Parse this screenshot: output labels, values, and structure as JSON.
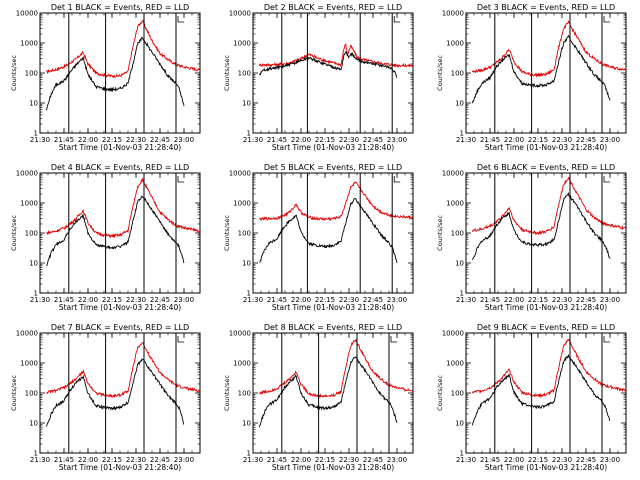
{
  "chart_data": {
    "type": "line",
    "y_scale": "log",
    "y_range": [
      1,
      10000
    ],
    "x_range": [
      "21:30",
      "23:10"
    ],
    "x_ticks": [
      "21:30",
      "21:45",
      "22:00",
      "22:15",
      "22:30",
      "22:45",
      "23:00"
    ],
    "y_ticks": [
      "1",
      "10",
      "100",
      "1000",
      "10000"
    ],
    "ylabel": "Counts/sec",
    "xlabel": "Start Time (01-Nov-03 21:28:40)",
    "series_colors": {
      "events": "#000000",
      "lld": "#e00000"
    },
    "panels": [
      {
        "title": "Det 1  BLACK = Events, RED = LLD",
        "markers": [
          "21:48",
          "22:11",
          "22:35",
          "22:55"
        ],
        "lld": {
          "x": [
            "21:34",
            "21:40",
            "21:46",
            "21:52",
            "21:57",
            "22:00",
            "22:05",
            "22:10",
            "22:15",
            "22:20",
            "22:25",
            "22:27",
            "22:31",
            "22:34",
            "22:40",
            "22:45",
            "22:50",
            "22:55",
            "23:00",
            "23:05",
            "23:10"
          ],
          "y": [
            110,
            130,
            170,
            280,
            480,
            200,
            100,
            85,
            80,
            80,
            110,
            400,
            3500,
            5500,
            1200,
            450,
            280,
            190,
            160,
            140,
            125
          ]
        },
        "events": {
          "x": [
            "21:34",
            "21:37",
            "21:40",
            "21:45",
            "21:49",
            "21:53",
            "21:57",
            "22:00",
            "22:05",
            "22:10",
            "22:15",
            "22:20",
            "22:25",
            "22:27",
            "22:31",
            "22:34",
            "22:40",
            "22:45",
            "22:50",
            "22:55",
            "22:57",
            "23:00"
          ],
          "y": [
            6,
            20,
            40,
            55,
            110,
            200,
            320,
            90,
            35,
            30,
            28,
            30,
            45,
            120,
            900,
            1500,
            500,
            200,
            80,
            45,
            30,
            8
          ]
        }
      },
      {
        "title": "Det 2  BLACK = Events, RED = LLD",
        "markers": [
          "21:48",
          "22:04",
          "22:37",
          "22:57"
        ],
        "lld": {
          "x": [
            "21:34",
            "21:45",
            "21:52",
            "22:00",
            "22:05",
            "22:10",
            "22:15",
            "22:20",
            "22:25",
            "22:27",
            "22:28",
            "22:29",
            "22:31",
            "22:33",
            "22:35",
            "22:40",
            "22:50",
            "23:00",
            "23:10"
          ],
          "y": [
            185,
            190,
            210,
            300,
            420,
            320,
            260,
            220,
            190,
            700,
            950,
            400,
            800,
            550,
            330,
            270,
            210,
            180,
            175
          ]
        },
        "events": {
          "x": [
            "21:34",
            "21:37",
            "21:45",
            "21:52",
            "22:00",
            "22:05",
            "22:10",
            "22:15",
            "22:20",
            "22:25",
            "22:27",
            "22:28",
            "22:30",
            "22:32",
            "22:34",
            "22:40",
            "22:50",
            "22:55",
            "22:58",
            "23:00"
          ],
          "y": [
            90,
            130,
            150,
            180,
            260,
            320,
            250,
            200,
            160,
            130,
            420,
            500,
            330,
            450,
            290,
            230,
            180,
            160,
            120,
            70
          ]
        }
      },
      {
        "title": "Det 3  BLACK = Events, RED = LLD",
        "markers": [
          "21:48",
          "22:11",
          "22:35",
          "22:55"
        ],
        "lld": {
          "x": [
            "21:34",
            "21:40",
            "21:46",
            "21:52",
            "21:57",
            "22:00",
            "22:05",
            "22:10",
            "22:15",
            "22:20",
            "22:25",
            "22:27",
            "22:31",
            "22:34",
            "22:40",
            "22:45",
            "22:50",
            "22:55",
            "23:00",
            "23:05",
            "23:10"
          ],
          "y": [
            110,
            125,
            165,
            300,
            600,
            240,
            110,
            90,
            85,
            90,
            130,
            450,
            3000,
            4800,
            1400,
            500,
            300,
            200,
            160,
            140,
            130
          ]
        },
        "events": {
          "x": [
            "21:34",
            "21:37",
            "21:40",
            "21:45",
            "21:49",
            "21:53",
            "21:57",
            "22:00",
            "22:05",
            "22:10",
            "22:15",
            "22:20",
            "22:25",
            "22:27",
            "22:31",
            "22:34",
            "22:40",
            "22:45",
            "22:50",
            "22:55",
            "22:57",
            "23:00"
          ],
          "y": [
            10,
            25,
            45,
            70,
            160,
            280,
            400,
            110,
            45,
            40,
            38,
            40,
            55,
            150,
            1000,
            1600,
            550,
            220,
            90,
            50,
            35,
            12
          ]
        }
      },
      {
        "title": "Det 4  BLACK = Events, RED = LLD",
        "markers": [
          "21:48",
          "22:11",
          "22:35",
          "22:55"
        ],
        "lld": {
          "x": [
            "21:34",
            "21:40",
            "21:46",
            "21:52",
            "21:57",
            "22:00",
            "22:05",
            "22:10",
            "22:15",
            "22:20",
            "22:25",
            "22:27",
            "22:31",
            "22:34",
            "22:40",
            "22:45",
            "22:50",
            "22:55",
            "23:00",
            "23:05",
            "23:10"
          ],
          "y": [
            100,
            115,
            155,
            280,
            560,
            220,
            100,
            85,
            80,
            85,
            120,
            420,
            3500,
            6000,
            1500,
            500,
            280,
            180,
            150,
            130,
            115
          ]
        },
        "events": {
          "x": [
            "21:34",
            "21:37",
            "21:40",
            "21:45",
            "21:49",
            "21:53",
            "21:57",
            "22:00",
            "22:05",
            "22:10",
            "22:15",
            "22:20",
            "22:25",
            "22:27",
            "22:31",
            "22:34",
            "22:40",
            "22:45",
            "22:50",
            "22:55",
            "22:57",
            "23:00"
          ],
          "y": [
            8,
            22,
            40,
            60,
            140,
            250,
            380,
            100,
            40,
            35,
            32,
            35,
            50,
            140,
            1100,
            1700,
            600,
            230,
            90,
            50,
            35,
            10
          ]
        }
      },
      {
        "title": "Det 5  BLACK = Events, RED = LLD",
        "markers": [
          "21:48",
          "22:04",
          "22:37",
          "22:57"
        ],
        "lld": {
          "x": [
            "21:34",
            "21:40",
            "21:46",
            "21:52",
            "21:57",
            "22:00",
            "22:05",
            "22:10",
            "22:15",
            "22:20",
            "22:25",
            "22:27",
            "22:31",
            "22:34",
            "22:40",
            "22:45",
            "22:50",
            "22:55",
            "23:00",
            "23:05",
            "23:10"
          ],
          "y": [
            290,
            300,
            320,
            450,
            900,
            480,
            330,
            300,
            290,
            300,
            350,
            700,
            3200,
            4800,
            1800,
            800,
            500,
            400,
            360,
            340,
            320
          ]
        },
        "events": {
          "x": [
            "21:34",
            "21:37",
            "21:40",
            "21:45",
            "21:49",
            "21:53",
            "21:57",
            "22:00",
            "22:05",
            "22:10",
            "22:15",
            "22:20",
            "22:25",
            "22:27",
            "22:31",
            "22:34",
            "22:40",
            "22:45",
            "22:50",
            "22:55",
            "22:57",
            "23:00"
          ],
          "y": [
            10,
            25,
            45,
            65,
            150,
            260,
            380,
            105,
            45,
            38,
            35,
            38,
            52,
            140,
            900,
            1400,
            500,
            210,
            85,
            48,
            33,
            10
          ]
        }
      },
      {
        "title": "Det 6  BLACK = Events, RED = LLD",
        "markers": [
          "21:48",
          "22:11",
          "22:35",
          "22:55"
        ],
        "lld": {
          "x": [
            "21:34",
            "21:40",
            "21:46",
            "21:52",
            "21:57",
            "22:00",
            "22:05",
            "22:10",
            "22:15",
            "22:20",
            "22:25",
            "22:27",
            "22:31",
            "22:34",
            "22:40",
            "22:45",
            "22:50",
            "22:55",
            "23:00",
            "23:05",
            "23:10"
          ],
          "y": [
            120,
            135,
            180,
            320,
            700,
            260,
            130,
            110,
            100,
            110,
            160,
            550,
            4200,
            7000,
            1800,
            600,
            330,
            220,
            180,
            160,
            140
          ]
        },
        "events": {
          "x": [
            "21:34",
            "21:37",
            "21:40",
            "21:45",
            "21:49",
            "21:53",
            "21:57",
            "22:00",
            "22:05",
            "22:10",
            "22:15",
            "22:20",
            "22:25",
            "22:27",
            "22:31",
            "22:34",
            "22:40",
            "22:45",
            "22:50",
            "22:55",
            "22:57",
            "23:00"
          ],
          "y": [
            12,
            30,
            55,
            80,
            180,
            320,
            450,
            120,
            50,
            42,
            40,
            42,
            60,
            160,
            1300,
            2000,
            700,
            250,
            100,
            55,
            38,
            14
          ]
        }
      },
      {
        "title": "Det 7  BLACK = Events, RED = LLD",
        "markers": [
          "21:48",
          "22:11",
          "22:35",
          "22:55"
        ],
        "lld": {
          "x": [
            "21:34",
            "21:40",
            "21:46",
            "21:52",
            "21:57",
            "22:00",
            "22:05",
            "22:10",
            "22:15",
            "22:20",
            "22:25",
            "22:27",
            "22:31",
            "22:34",
            "22:40",
            "22:45",
            "22:50",
            "22:55",
            "23:00",
            "23:05",
            "23:10"
          ],
          "y": [
            105,
            120,
            160,
            280,
            520,
            210,
            100,
            85,
            80,
            85,
            115,
            400,
            3200,
            4800,
            1300,
            480,
            280,
            180,
            150,
            130,
            115
          ]
        },
        "events": {
          "x": [
            "21:34",
            "21:37",
            "21:40",
            "21:45",
            "21:49",
            "21:53",
            "21:57",
            "22:00",
            "22:05",
            "22:10",
            "22:15",
            "22:20",
            "22:25",
            "22:27",
            "22:31",
            "22:34",
            "22:40",
            "22:45",
            "22:50",
            "22:55",
            "22:57",
            "23:00"
          ],
          "y": [
            7,
            20,
            38,
            55,
            130,
            230,
            350,
            95,
            38,
            33,
            30,
            33,
            48,
            130,
            850,
            1400,
            480,
            200,
            80,
            45,
            32,
            9
          ]
        }
      },
      {
        "title": "Det 8  BLACK = Events, RED = LLD",
        "markers": [
          "21:48",
          "22:11",
          "22:35",
          "22:55"
        ],
        "lld": {
          "x": [
            "21:34",
            "21:40",
            "21:46",
            "21:52",
            "21:57",
            "22:00",
            "22:05",
            "22:10",
            "22:15",
            "22:20",
            "22:25",
            "22:27",
            "22:31",
            "22:34",
            "22:40",
            "22:45",
            "22:50",
            "22:55",
            "23:00",
            "23:05",
            "23:10"
          ],
          "y": [
            100,
            115,
            150,
            270,
            500,
            200,
            95,
            80,
            78,
            82,
            110,
            420,
            3600,
            6000,
            1500,
            500,
            290,
            180,
            150,
            130,
            115
          ]
        },
        "events": {
          "x": [
            "21:34",
            "21:37",
            "21:40",
            "21:45",
            "21:49",
            "21:53",
            "21:57",
            "22:00",
            "22:05",
            "22:10",
            "22:15",
            "22:20",
            "22:25",
            "22:27",
            "22:31",
            "22:34",
            "22:40",
            "22:45",
            "22:50",
            "22:55",
            "22:57",
            "23:00"
          ],
          "y": [
            8,
            22,
            40,
            58,
            135,
            240,
            360,
            98,
            40,
            34,
            31,
            34,
            49,
            140,
            1000,
            1600,
            560,
            220,
            88,
            48,
            34,
            10
          ]
        }
      },
      {
        "title": "Det 9  BLACK = Events, RED = LLD",
        "markers": [
          "21:48",
          "22:11",
          "22:35",
          "22:55"
        ],
        "lld": {
          "x": [
            "21:34",
            "21:40",
            "21:46",
            "21:52",
            "21:57",
            "22:00",
            "22:05",
            "22:10",
            "22:15",
            "22:20",
            "22:25",
            "22:27",
            "22:31",
            "22:34",
            "22:40",
            "22:45",
            "22:50",
            "22:55",
            "23:00",
            "23:05",
            "23:10"
          ],
          "y": [
            105,
            120,
            160,
            290,
            600,
            230,
            105,
            88,
            82,
            88,
            120,
            430,
            3600,
            6200,
            1500,
            520,
            300,
            190,
            160,
            140,
            120
          ]
        },
        "events": {
          "x": [
            "21:34",
            "21:37",
            "21:40",
            "21:45",
            "21:49",
            "21:53",
            "21:57",
            "22:00",
            "22:05",
            "22:10",
            "22:15",
            "22:20",
            "22:25",
            "22:27",
            "22:31",
            "22:34",
            "22:40",
            "22:45",
            "22:50",
            "22:55",
            "22:57",
            "23:00"
          ],
          "y": [
            9,
            24,
            45,
            66,
            150,
            270,
            400,
            105,
            44,
            37,
            34,
            37,
            52,
            150,
            1100,
            1800,
            620,
            240,
            95,
            52,
            36,
            12
          ]
        }
      }
    ]
  }
}
